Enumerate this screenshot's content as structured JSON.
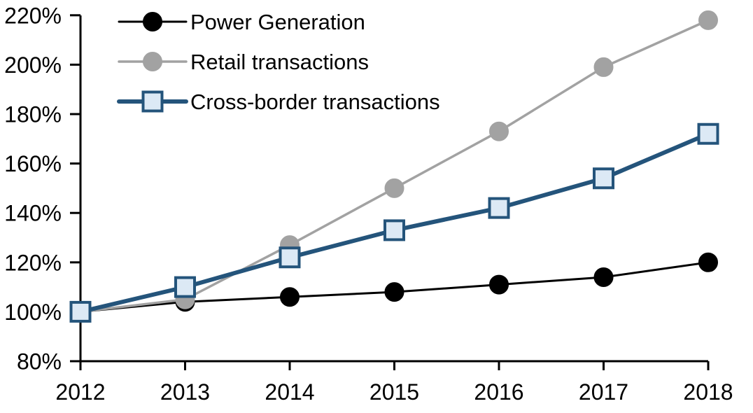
{
  "chart_data": {
    "type": "line",
    "title": "",
    "xlabel": "",
    "ylabel": "",
    "x": [
      2012,
      2013,
      2014,
      2015,
      2016,
      2017,
      2018
    ],
    "xtick_labels": [
      "2012",
      "2013",
      "2014",
      "2015",
      "2016",
      "2017",
      "2018"
    ],
    "ylim": [
      80,
      220
    ],
    "ytick_step": 20,
    "ytick_labels": [
      "80%",
      "100%",
      "120%",
      "140%",
      "160%",
      "180%",
      "200%",
      "220%"
    ],
    "grid": false,
    "legend_position": "top-left",
    "axis_color": "#000000",
    "series": [
      {
        "name": "Power Generation",
        "slug": "power-generation",
        "values": [
          100,
          104,
          106,
          108,
          111,
          114,
          120
        ],
        "line_color": "#000000",
        "line_width": 3,
        "marker": "circle",
        "marker_fill": "#000000",
        "marker_border": "#000000"
      },
      {
        "name": "Retail transactions",
        "slug": "retail-transactions",
        "values": [
          100,
          105,
          127,
          150,
          173,
          199,
          218
        ],
        "line_color": "#A2A2A2",
        "line_width": 3.5,
        "marker": "circle",
        "marker_fill": "#A2A2A2",
        "marker_border": "#A2A2A2"
      },
      {
        "name": "Cross-border transactions",
        "slug": "cross-border-transactions",
        "values": [
          100,
          110,
          122,
          133,
          142,
          154,
          172
        ],
        "line_color": "#24547B",
        "line_width": 6,
        "marker": "square",
        "marker_fill": "#DCE9F5",
        "marker_border": "#24547B"
      }
    ]
  }
}
